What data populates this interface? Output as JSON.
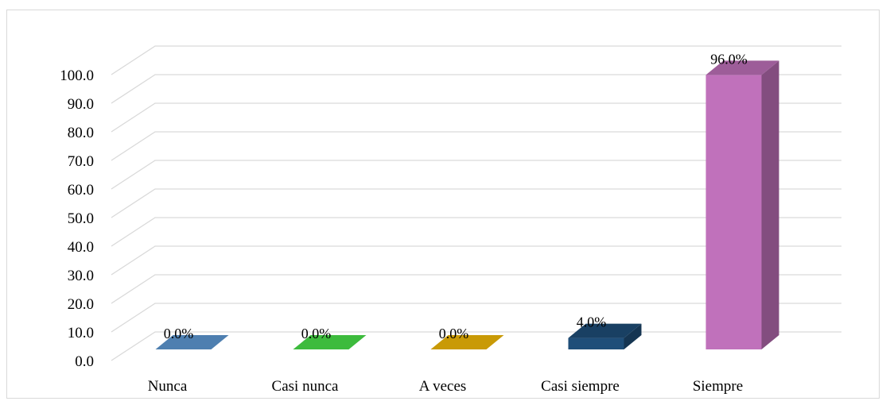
{
  "chart_data": {
    "type": "bar",
    "style": "3d-column",
    "categories": [
      "Nunca",
      "Casi nunca",
      "A veces",
      "Casi siempre",
      "Siempre"
    ],
    "values": [
      0.0,
      0.0,
      0.0,
      4.0,
      96.0
    ],
    "data_labels": [
      "0.0%",
      "0.0%",
      "0.0%",
      "4.0%",
      "96.0%"
    ],
    "colors": [
      "#4e7fb0",
      "#3dbb3d",
      "#c99a06",
      "#1f4e79",
      "#c071bb"
    ],
    "y_ticks": [
      "0.0",
      "10.0",
      "20.0",
      "30.0",
      "40.0",
      "50.0",
      "60.0",
      "70.0",
      "80.0",
      "90.0",
      "100.0"
    ],
    "ylim": [
      0,
      100
    ],
    "grid": true,
    "legend": "none",
    "title": "",
    "xlabel": "",
    "ylabel": ""
  }
}
